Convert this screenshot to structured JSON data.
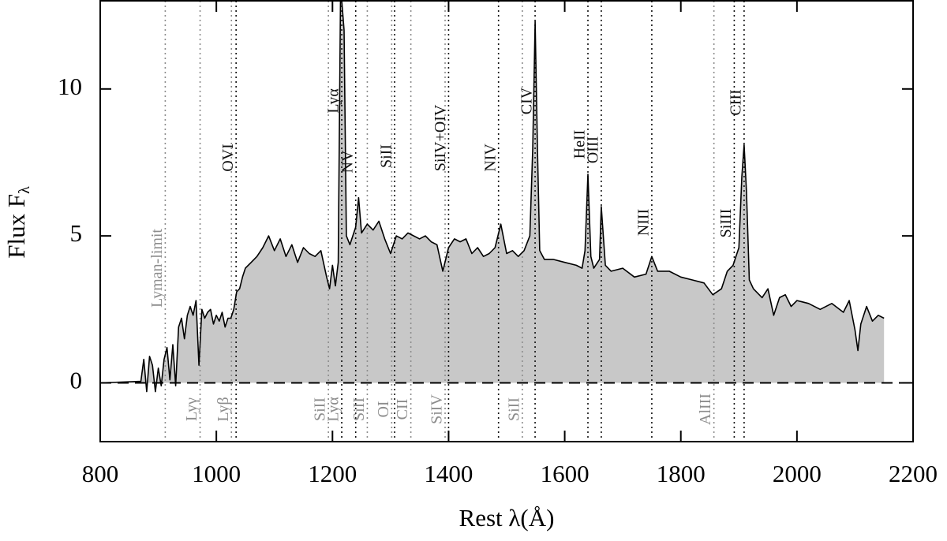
{
  "chart_data": {
    "type": "area",
    "xlabel": "Rest λ(Å)",
    "ylabel": "Flux F",
    "ylabel_sub": "λ",
    "xlim": [
      800,
      2200
    ],
    "ylim": [
      -2,
      13
    ],
    "xticks": [
      800,
      1000,
      1200,
      1400,
      1600,
      1800,
      2000,
      2200
    ],
    "yticks": [
      0,
      5,
      10
    ],
    "line_color": "#000000",
    "fill_color": "#c8c8c8",
    "x": [
      800,
      870,
      875,
      880,
      885,
      890,
      895,
      900,
      905,
      910,
      915,
      920,
      925,
      930,
      935,
      940,
      945,
      950,
      955,
      960,
      965,
      970,
      975,
      980,
      985,
      990,
      995,
      1000,
      1005,
      1010,
      1015,
      1020,
      1025,
      1030,
      1035,
      1040,
      1045,
      1050,
      1060,
      1070,
      1080,
      1090,
      1100,
      1110,
      1120,
      1130,
      1140,
      1150,
      1160,
      1170,
      1180,
      1190,
      1195,
      1200,
      1205,
      1210,
      1214,
      1220,
      1224,
      1230,
      1240,
      1245,
      1250,
      1260,
      1270,
      1280,
      1290,
      1300,
      1310,
      1320,
      1330,
      1340,
      1350,
      1360,
      1370,
      1380,
      1390,
      1400,
      1410,
      1420,
      1430,
      1440,
      1450,
      1460,
      1470,
      1480,
      1490,
      1500,
      1510,
      1520,
      1530,
      1540,
      1545,
      1549,
      1553,
      1557,
      1565,
      1580,
      1600,
      1620,
      1630,
      1635,
      1640,
      1645,
      1650,
      1660,
      1663,
      1670,
      1680,
      1700,
      1720,
      1740,
      1750,
      1760,
      1780,
      1800,
      1820,
      1840,
      1855,
      1870,
      1880,
      1890,
      1900,
      1905,
      1909,
      1913,
      1918,
      1925,
      1940,
      1950,
      1960,
      1970,
      1980,
      1990,
      2000,
      2020,
      2040,
      2060,
      2080,
      2090,
      2100,
      2105,
      2110,
      2120,
      2130,
      2140,
      2150
    ],
    "y": [
      0.0,
      0.05,
      0.8,
      -0.3,
      0.9,
      0.6,
      -0.3,
      0.5,
      -0.1,
      0.8,
      1.2,
      0.1,
      1.3,
      -0.1,
      1.9,
      2.2,
      1.5,
      2.3,
      2.6,
      2.3,
      2.8,
      0.6,
      2.5,
      2.2,
      2.4,
      2.5,
      2.0,
      2.3,
      2.1,
      2.4,
      1.9,
      2.2,
      2.2,
      2.5,
      3.1,
      3.2,
      3.6,
      3.9,
      4.1,
      4.3,
      4.6,
      5.0,
      4.5,
      4.9,
      4.3,
      4.7,
      4.1,
      4.6,
      4.4,
      4.3,
      4.5,
      3.6,
      3.2,
      4.0,
      3.3,
      4.1,
      13.5,
      12,
      5.0,
      4.7,
      5.3,
      6.3,
      5.1,
      5.4,
      5.2,
      5.5,
      4.9,
      4.4,
      5.0,
      4.9,
      5.1,
      5.0,
      4.9,
      5.0,
      4.8,
      4.7,
      3.8,
      4.6,
      4.9,
      4.8,
      4.9,
      4.4,
      4.6,
      4.3,
      4.4,
      4.6,
      5.4,
      4.4,
      4.5,
      4.3,
      4.5,
      5.0,
      8,
      12.3,
      8,
      4.5,
      4.2,
      4.2,
      4.1,
      4.0,
      3.9,
      4.5,
      7.1,
      4.3,
      3.9,
      4.2,
      6.0,
      4.0,
      3.8,
      3.9,
      3.6,
      3.7,
      4.3,
      3.8,
      3.8,
      3.6,
      3.5,
      3.4,
      3.0,
      3.2,
      3.8,
      4.0,
      4.6,
      7.0,
      8.1,
      6.5,
      3.5,
      3.2,
      2.9,
      3.2,
      2.3,
      2.9,
      3.0,
      2.6,
      2.8,
      2.7,
      2.5,
      2.7,
      2.4,
      2.8,
      1.8,
      1.1,
      2.0,
      2.6,
      2.1,
      2.3,
      2.2
    ],
    "lines": [
      {
        "label": "Lyman-limit",
        "wavelength": 912,
        "position": "top",
        "color": "#8c8c8c"
      },
      {
        "label": "Lyγ",
        "wavelength": 972,
        "position": "bottom",
        "color": "#8c8c8c"
      },
      {
        "label": "Lyβ",
        "wavelength": 1026,
        "position": "bottom",
        "color": "#8c8c8c"
      },
      {
        "label": "OVI",
        "wavelength": 1034,
        "position": "top",
        "color": "#111111"
      },
      {
        "label": "SiII",
        "wavelength": 1193,
        "position": "bottom",
        "color": "#8c8c8c"
      },
      {
        "label": "Lyα",
        "wavelength": 1216,
        "position": "bottom",
        "color": "#8c8c8c"
      },
      {
        "label": "Lyα",
        "wavelength": 1216,
        "position": "top",
        "color": "#111111"
      },
      {
        "label": "NV",
        "wavelength": 1240,
        "position": "top",
        "color": "#111111"
      },
      {
        "label": "SiII",
        "wavelength": 1260,
        "position": "bottom",
        "color": "#8c8c8c"
      },
      {
        "label": "OI",
        "wavelength": 1302,
        "position": "bottom",
        "color": "#8c8c8c"
      },
      {
        "label": "SiII",
        "wavelength": 1307,
        "position": "top",
        "color": "#111111"
      },
      {
        "label": "CII",
        "wavelength": 1335,
        "position": "bottom",
        "color": "#8c8c8c"
      },
      {
        "label": "SiIV",
        "wavelength": 1394,
        "position": "bottom",
        "color": "#8c8c8c"
      },
      {
        "label": "SiIV+OIV",
        "wavelength": 1400,
        "position": "top",
        "color": "#111111"
      },
      {
        "label": "NIV",
        "wavelength": 1486,
        "position": "top",
        "color": "#111111"
      },
      {
        "label": "SiII",
        "wavelength": 1527,
        "position": "bottom",
        "color": "#8c8c8c"
      },
      {
        "label": "CIV",
        "wavelength": 1549,
        "position": "top",
        "color": "#111111"
      },
      {
        "label": "HeII",
        "wavelength": 1640,
        "position": "top",
        "color": "#111111"
      },
      {
        "label": "OIII",
        "wavelength": 1663,
        "position": "top",
        "color": "#111111"
      },
      {
        "label": "NIII",
        "wavelength": 1750,
        "position": "top",
        "color": "#111111"
      },
      {
        "label": "AlIII",
        "wavelength": 1857,
        "position": "bottom",
        "color": "#8c8c8c"
      },
      {
        "label": "SiIII",
        "wavelength": 1892,
        "position": "top",
        "color": "#111111"
      },
      {
        "label": "CIII",
        "wavelength": 1909,
        "position": "top",
        "color": "#111111"
      }
    ]
  }
}
